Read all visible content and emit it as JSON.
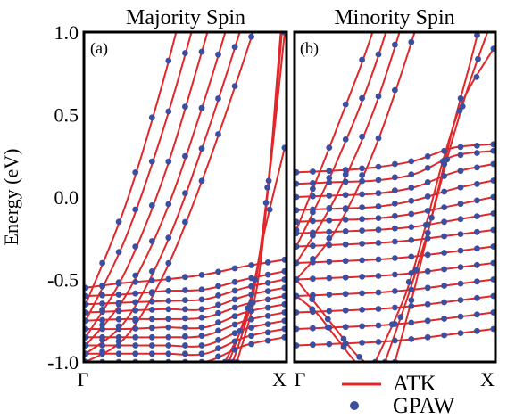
{
  "chart_data": {
    "type": "line",
    "ylabel": "Energy (eV)",
    "ylim": [
      -1.0,
      1.0
    ],
    "yticks": [
      "-1.0",
      "-0.5",
      "0.0",
      "0.5",
      "1.0"
    ],
    "ytick_values": [
      -1.0,
      -0.5,
      0.0,
      0.5,
      1.0
    ],
    "xticks": [
      "Γ",
      "X"
    ],
    "grid": false,
    "legend": {
      "placement": "bottom-right",
      "entries": [
        {
          "label": "ATK",
          "marker": "line",
          "color": "#e0282a"
        },
        {
          "label": "GPAW",
          "marker": "dot",
          "color": "#3a4fa0"
        }
      ]
    },
    "colors": {
      "atk": "#e0282a",
      "gpaw": "#3a4fa0"
    },
    "panels": [
      {
        "title": "Majority Spin",
        "label": "(a)",
        "bands": [
          {
            "k": [
              0,
              0.2,
              0.4,
              0.6,
              0.8,
              1.0
            ],
            "e": [
              -1.0,
              -0.85,
              -0.45,
              0.15,
              0.85,
              1.6
            ]
          },
          {
            "k": [
              0,
              0.2,
              0.4,
              0.6,
              0.8,
              1.0
            ],
            "e": [
              -0.95,
              -0.75,
              -0.3,
              0.35,
              1.1,
              1.9
            ]
          },
          {
            "k": [
              0,
              0.2,
              0.4,
              0.6,
              0.8,
              1.0
            ],
            "e": [
              -0.9,
              -0.6,
              -0.1,
              0.6,
              1.4,
              2.2
            ]
          },
          {
            "k": [
              0,
              0.2,
              0.4,
              0.6,
              0.8,
              1.0
            ],
            "e": [
              -0.85,
              -0.45,
              0.15,
              0.95,
              1.8,
              2.6
            ]
          },
          {
            "k": [
              0,
              0.2,
              0.4,
              0.6,
              0.8,
              1.0
            ],
            "e": [
              -0.75,
              -0.25,
              0.45,
              1.3,
              2.2,
              3.0
            ]
          },
          {
            "k": [
              0,
              0.2,
              0.4,
              0.6,
              0.8,
              1.0
            ],
            "e": [
              -0.65,
              -0.05,
              0.75,
              1.7,
              2.6,
              3.4
            ]
          },
          {
            "k": [
              0,
              0.2,
              0.4,
              0.6,
              0.8,
              1.0
            ],
            "e": [
              -0.55,
              -0.52,
              -0.5,
              -0.47,
              -0.42,
              -0.38
            ]
          },
          {
            "k": [
              0,
              0.2,
              0.4,
              0.6,
              0.8,
              1.0
            ],
            "e": [
              -0.6,
              -0.59,
              -0.57,
              -0.56,
              -0.5,
              -0.45
            ]
          },
          {
            "k": [
              0,
              0.2,
              0.4,
              0.6,
              0.8,
              1.0
            ],
            "e": [
              -0.65,
              -0.64,
              -0.63,
              -0.62,
              -0.55,
              -0.5
            ]
          },
          {
            "k": [
              0,
              0.2,
              0.4,
              0.6,
              0.8,
              1.0
            ],
            "e": [
              -0.7,
              -0.69,
              -0.68,
              -0.68,
              -0.6,
              -0.55
            ]
          },
          {
            "k": [
              0,
              0.2,
              0.4,
              0.6,
              0.8,
              1.0
            ],
            "e": [
              -0.75,
              -0.74,
              -0.74,
              -0.73,
              -0.65,
              -0.6
            ]
          },
          {
            "k": [
              0,
              0.2,
              0.4,
              0.6,
              0.8,
              1.0
            ],
            "e": [
              -0.8,
              -0.8,
              -0.79,
              -0.79,
              -0.7,
              -0.65
            ]
          },
          {
            "k": [
              0,
              0.2,
              0.4,
              0.6,
              0.8,
              1.0
            ],
            "e": [
              -0.85,
              -0.85,
              -0.85,
              -0.84,
              -0.75,
              -0.7
            ]
          },
          {
            "k": [
              0,
              0.2,
              0.4,
              0.6,
              0.8,
              1.0
            ],
            "e": [
              -0.9,
              -0.9,
              -0.9,
              -0.9,
              -0.8,
              -0.75
            ]
          },
          {
            "k": [
              0,
              0.2,
              0.4,
              0.6,
              0.8,
              1.0
            ],
            "e": [
              -0.95,
              -0.95,
              -0.95,
              -0.95,
              -0.85,
              -0.8
            ]
          },
          {
            "k": [
              0,
              0.2,
              0.4,
              0.6,
              0.8,
              1.0
            ],
            "e": [
              -1.0,
              -1.0,
              -1.0,
              -1.0,
              -0.9,
              -0.85
            ]
          },
          {
            "k": [
              0.7,
              0.8,
              0.85,
              0.9,
              1.0
            ],
            "e": [
              -1.0,
              -0.75,
              -0.5,
              -0.2,
              0.3
            ]
          },
          {
            "k": [
              0.72,
              0.82,
              0.88,
              0.93,
              1.0
            ],
            "e": [
              -1.0,
              -0.65,
              -0.3,
              0.2,
              1.0
            ]
          },
          {
            "k": [
              0.74,
              0.84,
              0.9,
              0.95,
              1.0
            ],
            "e": [
              -1.0,
              -0.6,
              -0.1,
              0.5,
              1.2
            ]
          },
          {
            "k": [
              0.76,
              0.86,
              0.92,
              0.96,
              1.0
            ],
            "e": [
              -1.0,
              -0.55,
              0.1,
              0.7,
              1.3
            ]
          }
        ]
      },
      {
        "title": "Minority Spin",
        "label": "(b)",
        "bands": [
          {
            "k": [
              0,
              0.2,
              0.4,
              0.6,
              0.8,
              1.0
            ],
            "e": [
              -0.5,
              -0.2,
              0.3,
              1.0,
              1.8,
              2.6
            ]
          },
          {
            "k": [
              0,
              0.2,
              0.4,
              0.6,
              0.8,
              1.0
            ],
            "e": [
              -0.4,
              0.0,
              0.55,
              1.3,
              2.1,
              3.0
            ]
          },
          {
            "k": [
              0,
              0.2,
              0.4,
              0.6,
              0.8,
              1.0
            ],
            "e": [
              -0.3,
              0.2,
              0.8,
              1.6,
              2.5,
              3.4
            ]
          },
          {
            "k": [
              0,
              0.2,
              0.4,
              0.6,
              0.8,
              1.0
            ],
            "e": [
              -0.2,
              0.4,
              1.05,
              1.9,
              2.8,
              3.8
            ]
          },
          {
            "k": [
              0,
              0.2,
              0.4,
              0.6,
              0.8,
              1.0
            ],
            "e": [
              0.15,
              0.16,
              0.18,
              0.22,
              0.3,
              0.32
            ]
          },
          {
            "k": [
              0,
              0.2,
              0.4,
              0.6,
              0.8,
              1.0
            ],
            "e": [
              0.08,
              0.09,
              0.1,
              0.14,
              0.25,
              0.28
            ]
          },
          {
            "k": [
              0,
              0.2,
              0.4,
              0.6,
              0.8,
              1.0
            ],
            "e": [
              0.0,
              0.01,
              0.02,
              0.06,
              0.15,
              0.2
            ]
          },
          {
            "k": [
              0,
              0.2,
              0.4,
              0.6,
              0.8,
              1.0
            ],
            "e": [
              -0.08,
              -0.07,
              -0.06,
              -0.02,
              0.05,
              0.1
            ]
          },
          {
            "k": [
              0,
              0.2,
              0.4,
              0.6,
              0.8,
              1.0
            ],
            "e": [
              -0.15,
              -0.14,
              -0.13,
              -0.1,
              -0.05,
              0.0
            ]
          },
          {
            "k": [
              0,
              0.2,
              0.4,
              0.6,
              0.8,
              1.0
            ],
            "e": [
              -0.22,
              -0.21,
              -0.2,
              -0.18,
              -0.14,
              -0.1
            ]
          },
          {
            "k": [
              0,
              0.2,
              0.4,
              0.6,
              0.8,
              1.0
            ],
            "e": [
              -0.3,
              -0.29,
              -0.28,
              -0.26,
              -0.23,
              -0.2
            ]
          },
          {
            "k": [
              0,
              0.2,
              0.4,
              0.6,
              0.8,
              1.0
            ],
            "e": [
              -0.4,
              -0.39,
              -0.38,
              -0.36,
              -0.33,
              -0.3
            ]
          },
          {
            "k": [
              0,
              0.2,
              0.4,
              0.6,
              0.8,
              1.0
            ],
            "e": [
              -0.5,
              -0.49,
              -0.48,
              -0.46,
              -0.43,
              -0.4
            ]
          },
          {
            "k": [
              0,
              0.2,
              0.4,
              0.6,
              0.8,
              1.0
            ],
            "e": [
              -0.6,
              -0.59,
              -0.58,
              -0.56,
              -0.53,
              -0.5
            ]
          },
          {
            "k": [
              0,
              0.2,
              0.4,
              0.6,
              0.8,
              1.0
            ],
            "e": [
              -0.7,
              -0.69,
              -0.68,
              -0.66,
              -0.63,
              -0.6
            ]
          },
          {
            "k": [
              0,
              0.2,
              0.4,
              0.6,
              0.8,
              1.0
            ],
            "e": [
              -0.8,
              -0.79,
              -0.78,
              -0.76,
              -0.73,
              -0.7
            ]
          },
          {
            "k": [
              0,
              0.2,
              0.4,
              0.6,
              0.8,
              1.0
            ],
            "e": [
              -0.9,
              -0.89,
              -0.88,
              -0.86,
              -0.83,
              -0.8
            ]
          },
          {
            "k": [
              0,
              0.1,
              0.2,
              0.3,
              0.4
            ],
            "e": [
              -0.5,
              -0.65,
              -0.8,
              -0.95,
              -1.05
            ]
          },
          {
            "k": [
              0,
              0.1,
              0.2,
              0.3,
              0.4
            ],
            "e": [
              -0.6,
              -0.7,
              -0.85,
              -1.0,
              -1.1
            ]
          },
          {
            "k": [
              0.4,
              0.55,
              0.65,
              0.75,
              0.85,
              1.0
            ],
            "e": [
              -1.0,
              -0.6,
              -0.2,
              0.25,
              0.6,
              0.9
            ]
          },
          {
            "k": [
              0.45,
              0.58,
              0.68,
              0.78,
              0.88,
              1.0
            ],
            "e": [
              -1.0,
              -0.55,
              -0.15,
              0.3,
              0.7,
              1.1
            ]
          },
          {
            "k": [
              0.5,
              0.6,
              0.7,
              0.8,
              0.9,
              1.0
            ],
            "e": [
              -1.0,
              -0.55,
              -0.05,
              0.45,
              0.9,
              1.4
            ]
          }
        ]
      }
    ]
  }
}
